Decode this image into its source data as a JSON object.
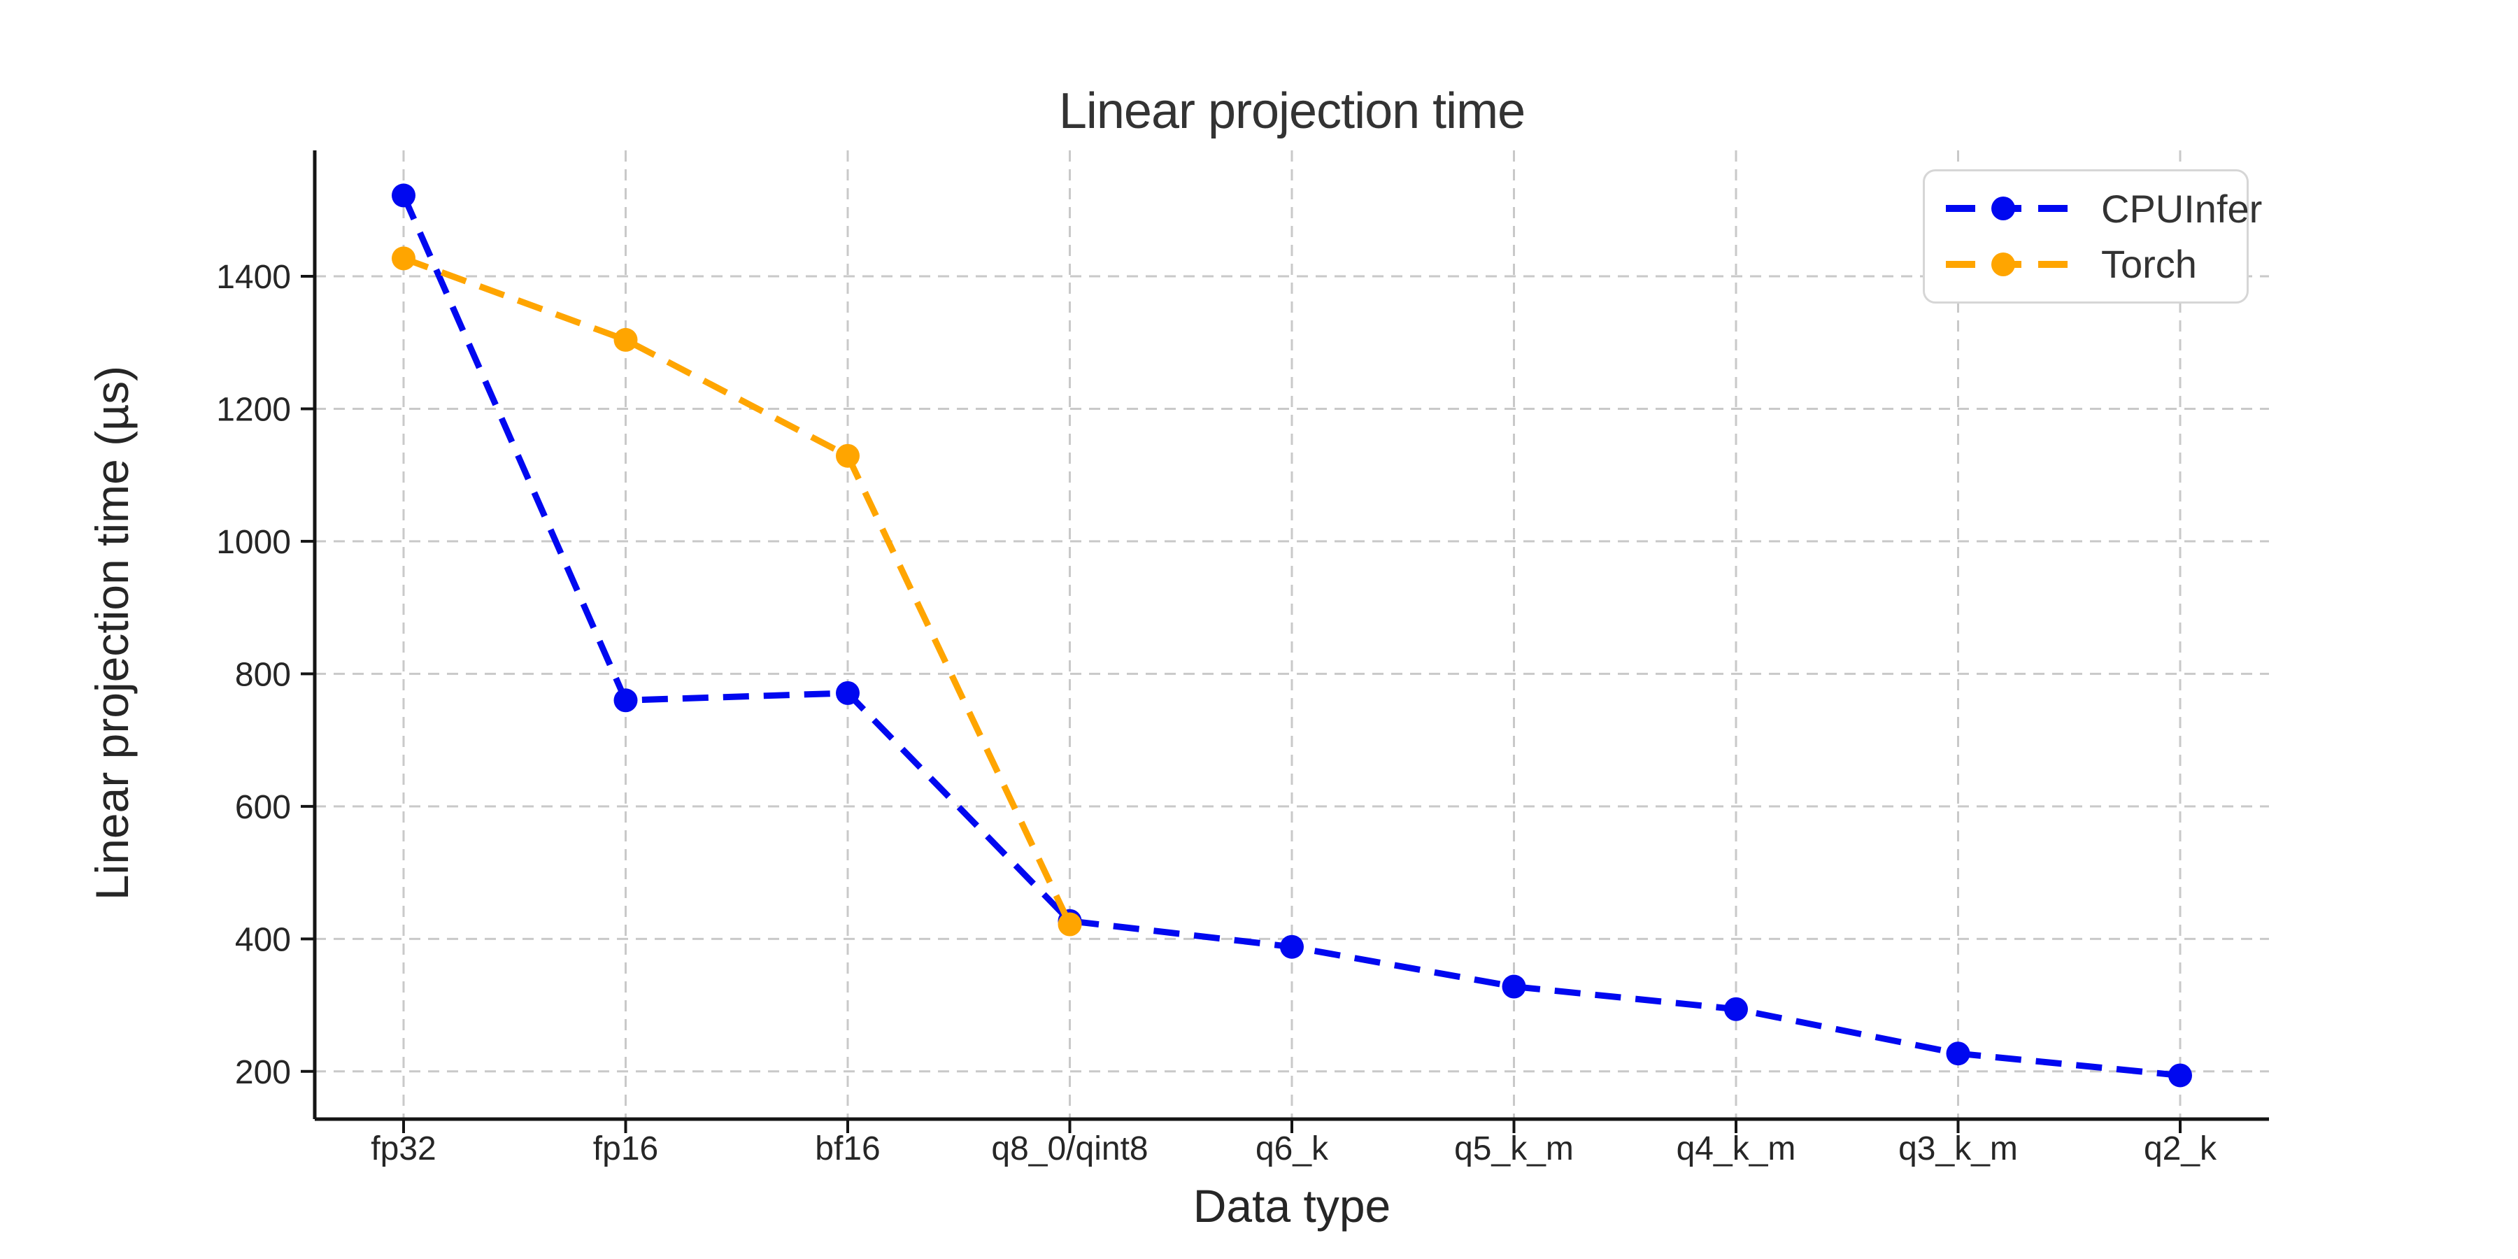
{
  "figure": {
    "background": "#ffffff",
    "text_color": "#333333",
    "grid_color": "#c9c9c9",
    "spine_color": "#141414"
  },
  "chart_data": {
    "type": "line",
    "title": "Linear projection time",
    "xlabel": "Data type",
    "ylabel": "Linear projection time (µs)",
    "categories": [
      "fp32",
      "fp16",
      "bf16",
      "q8_0/qint8",
      "q6_k",
      "q5_k_m",
      "q4_k_m",
      "q3_k_m",
      "q2_k"
    ],
    "series": [
      {
        "name": "CPUInfer",
        "color": "#0008f0",
        "values": [
          1522,
          760,
          771,
          427,
          388,
          328,
          294,
          227,
          194
        ]
      },
      {
        "name": "Torch",
        "color": "#ffa500",
        "values": [
          1427,
          1304,
          1129,
          422
        ]
      }
    ],
    "yticks": [
      200,
      400,
      600,
      800,
      1000,
      1200,
      1400
    ],
    "ylim": [
      128,
      1590
    ],
    "grid": true,
    "grid_style": "dashed",
    "line_style": "dashed",
    "marker": "circle",
    "legend_position": "upper right"
  }
}
